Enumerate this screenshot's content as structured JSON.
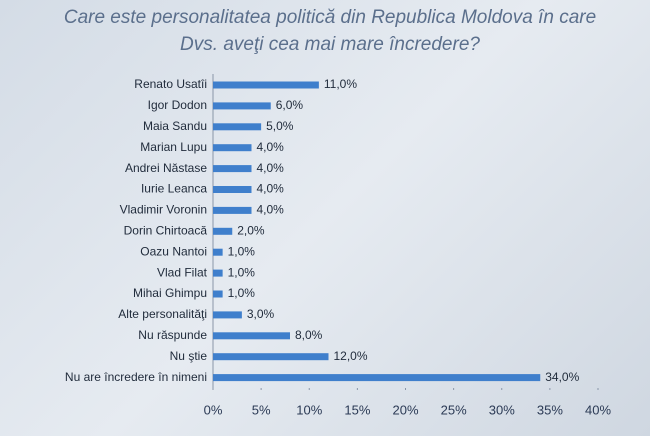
{
  "chart_data": {
    "type": "bar",
    "orientation": "horizontal",
    "title": "Care este personalitatea politică din Republica Moldova în care Dvs. aveţi cea mai mare încredere?",
    "categories": [
      "Renato Usatîi",
      "Igor Dodon",
      "Maia Sandu",
      "Marian Lupu",
      "Andrei Năstase",
      "Iurie Leanca",
      "Vladimir Voronin",
      "Dorin Chirtoacă",
      "Oazu Nantoi",
      "Vlad Filat",
      "Mihai Ghimpu",
      "Alte personalităţi",
      "Nu răspunde",
      "Nu ştie",
      "Nu are încredere în nimeni"
    ],
    "values": [
      11,
      6,
      5,
      4,
      4,
      4,
      4,
      2,
      1,
      1,
      1,
      3,
      8,
      12,
      34
    ],
    "value_labels": [
      "11,0%",
      "6,0%",
      "5,0%",
      "4,0%",
      "4,0%",
      "4,0%",
      "4,0%",
      "2,0%",
      "1,0%",
      "1,0%",
      "1,0%",
      "3,0%",
      "8,0%",
      "12,0%",
      "34,0%"
    ],
    "color": "#3f7fcc",
    "xlim": [
      0,
      40
    ],
    "xticks": [
      {
        "value": 0,
        "label": "0%"
      },
      {
        "value": 5,
        "label": "5%"
      },
      {
        "value": 10,
        "label": "10%"
      },
      {
        "value": 15,
        "label": "15%"
      },
      {
        "value": 20,
        "label": "20%"
      },
      {
        "value": 25,
        "label": "25%"
      },
      {
        "value": 30,
        "label": "30%"
      },
      {
        "value": 35,
        "label": "35%"
      },
      {
        "value": 40,
        "label": "40%"
      }
    ]
  }
}
